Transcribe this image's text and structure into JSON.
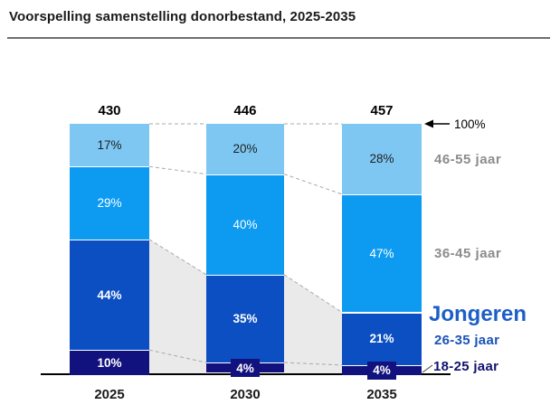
{
  "title": "Voorspelling samenstelling donorbestand, 2025-2035",
  "colors": {
    "light_blue": "#7DC7F2",
    "mid_blue": "#0D9BF2",
    "dark_blue": "#0C4FC2",
    "navy": "#12127E",
    "gray_band_fill": "#EAEAEA",
    "dash_line": "#A9A9A9",
    "axis": "#000000",
    "gray_label": "#8C8C8C",
    "jongeren_blue": "#1D5FC7",
    "sub_blue": "#1A53B8",
    "navy_text": "#13136F",
    "title_rule": "#6F6F6F"
  },
  "annotations": {
    "hundred_percent_label": "100%",
    "age_46_55": "46-55 jaar",
    "age_36_45": "36-45 jaar",
    "jongeren_heading": "Jongeren",
    "age_26_35": "26-35 jaar",
    "age_18_25": "18-25 jaar"
  },
  "chart_data": {
    "type": "bar",
    "stacked": true,
    "percent_scale": true,
    "title": "Voorspelling samenstelling donorbestand, 2025-2035",
    "categories": [
      "2025",
      "2030",
      "2035"
    ],
    "totals": [
      430,
      446,
      457
    ],
    "series_top_down": [
      {
        "name": "46-55 jaar",
        "values": [
          17,
          20,
          28
        ],
        "color": "#7DC7F2",
        "label_color": "#1F1F1F",
        "label_bold": false
      },
      {
        "name": "36-45 jaar",
        "values": [
          29,
          40,
          47
        ],
        "color": "#0D9BF2",
        "label_color": "#FFFFFF",
        "label_bold": false
      },
      {
        "name": "26-35 jaar",
        "values": [
          44,
          35,
          21
        ],
        "color": "#0C4FC2",
        "label_color": "#FFFFFF",
        "label_bold": true
      },
      {
        "name": "18-25 jaar",
        "values": [
          10,
          4,
          4
        ],
        "color": "#12127E",
        "label_color": "#FFFFFF",
        "label_bold": true
      }
    ],
    "value_suffix": "%",
    "ylim": [
      0,
      100
    ],
    "grid": false,
    "legend_position": "right",
    "notes": "Gray shaded bands between bars connect the combined Jongeren (18-35) segments; dashed lines connect segment boundaries; arrow marks the 100% line at the top of the bars."
  }
}
